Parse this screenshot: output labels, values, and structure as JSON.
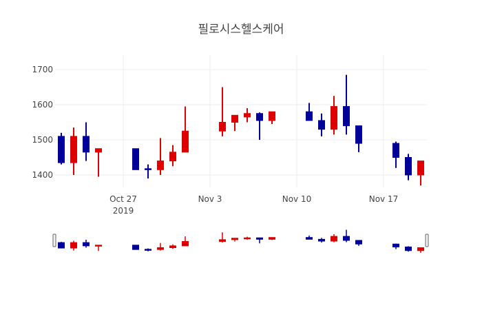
{
  "chart_data": {
    "type": "candlestick",
    "title": "필로시스헬스케어",
    "xlabel": "",
    "ylabel": "",
    "ylim": [
      1360,
      1700
    ],
    "yticks": [
      1400,
      1500,
      1600,
      1700
    ],
    "xticks": [
      {
        "date": "2019-10-27",
        "label": "Oct 27",
        "sublabel": "2019"
      },
      {
        "date": "2019-11-03",
        "label": "Nov 3",
        "sublabel": ""
      },
      {
        "date": "2019-11-10",
        "label": "Nov 10",
        "sublabel": ""
      },
      {
        "date": "2019-11-17",
        "label": "Nov 17",
        "sublabel": ""
      }
    ],
    "xrange": [
      "2019-10-21T12:00",
      "2019-11-20T12:00"
    ],
    "grid": true,
    "legend": false,
    "rangeslider": true,
    "increasing_color": "#dd0000",
    "decreasing_color": "#000099",
    "candles": [
      {
        "date": "2019-10-22",
        "open": 1510,
        "high": 1520,
        "low": 1430,
        "close": 1435
      },
      {
        "date": "2019-10-23",
        "open": 1435,
        "high": 1535,
        "low": 1400,
        "close": 1510
      },
      {
        "date": "2019-10-24",
        "open": 1510,
        "high": 1550,
        "low": 1440,
        "close": 1465
      },
      {
        "date": "2019-10-25",
        "open": 1465,
        "high": 1475,
        "low": 1395,
        "close": 1475
      },
      {
        "date": "2019-10-28",
        "open": 1475,
        "high": 1475,
        "low": 1415,
        "close": 1415
      },
      {
        "date": "2019-10-29",
        "open": 1418,
        "high": 1430,
        "low": 1390,
        "close": 1415
      },
      {
        "date": "2019-10-30",
        "open": 1415,
        "high": 1505,
        "low": 1400,
        "close": 1440
      },
      {
        "date": "2019-10-31",
        "open": 1440,
        "high": 1485,
        "low": 1425,
        "close": 1465
      },
      {
        "date": "2019-11-01",
        "open": 1465,
        "high": 1595,
        "low": 1465,
        "close": 1525
      },
      {
        "date": "2019-11-04",
        "open": 1525,
        "high": 1650,
        "low": 1510,
        "close": 1550
      },
      {
        "date": "2019-11-05",
        "open": 1550,
        "high": 1570,
        "low": 1525,
        "close": 1570
      },
      {
        "date": "2019-11-06",
        "open": 1565,
        "high": 1590,
        "low": 1550,
        "close": 1575
      },
      {
        "date": "2019-11-07",
        "open": 1575,
        "high": 1578,
        "low": 1500,
        "close": 1555
      },
      {
        "date": "2019-11-08",
        "open": 1555,
        "high": 1580,
        "low": 1545,
        "close": 1580
      },
      {
        "date": "2019-11-11",
        "open": 1580,
        "high": 1605,
        "low": 1555,
        "close": 1555
      },
      {
        "date": "2019-11-12",
        "open": 1555,
        "high": 1575,
        "low": 1510,
        "close": 1530
      },
      {
        "date": "2019-11-13",
        "open": 1530,
        "high": 1625,
        "low": 1515,
        "close": 1595
      },
      {
        "date": "2019-11-14",
        "open": 1595,
        "high": 1685,
        "low": 1515,
        "close": 1540
      },
      {
        "date": "2019-11-15",
        "open": 1540,
        "high": 1540,
        "low": 1465,
        "close": 1490
      },
      {
        "date": "2019-11-18",
        "open": 1490,
        "high": 1495,
        "low": 1420,
        "close": 1450
      },
      {
        "date": "2019-11-19",
        "open": 1450,
        "high": 1460,
        "low": 1385,
        "close": 1400
      },
      {
        "date": "2019-11-20",
        "open": 1400,
        "high": 1440,
        "low": 1370,
        "close": 1440
      }
    ]
  }
}
